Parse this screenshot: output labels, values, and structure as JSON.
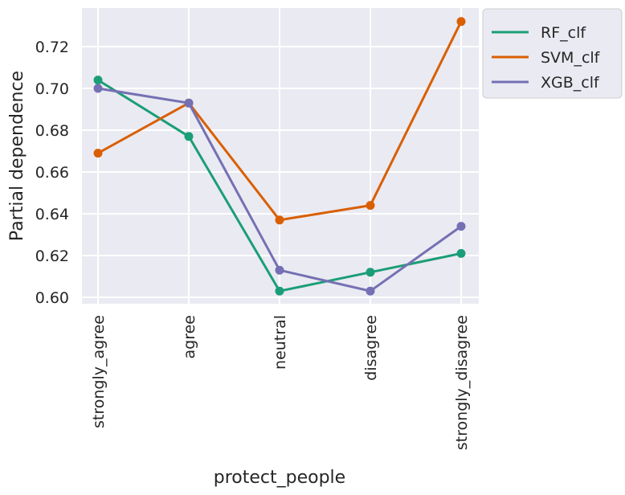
{
  "chart_data": {
    "type": "line",
    "title": "",
    "xlabel": "protect_people",
    "ylabel": "Partial dependence",
    "categories": [
      "strongly_agree",
      "agree",
      "neutral",
      "disagree",
      "strongly_disagree"
    ],
    "yticks": [
      "0.60",
      "0.62",
      "0.64",
      "0.66",
      "0.68",
      "0.70",
      "0.72"
    ],
    "ylim": [
      0.597,
      0.738
    ],
    "grid": true,
    "legend_position": "outside-top-right",
    "series": [
      {
        "name": "RF_clf",
        "color": "#1b9e77",
        "values": [
          0.704,
          0.677,
          0.603,
          0.612,
          0.621
        ]
      },
      {
        "name": "SVM_clf",
        "color": "#d95f02",
        "values": [
          0.669,
          0.693,
          0.637,
          0.644,
          0.732
        ]
      },
      {
        "name": "XGB_clf",
        "color": "#7570b3",
        "values": [
          0.7,
          0.693,
          0.613,
          0.603,
          0.634
        ]
      }
    ]
  }
}
